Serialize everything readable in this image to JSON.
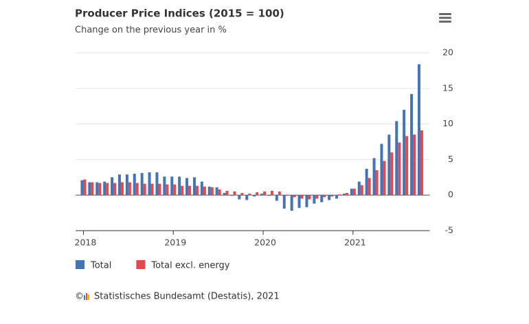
{
  "chart_data": {
    "type": "bar",
    "title": "Producer Price Indices (2015 = 100)",
    "subtitle": "Change on the previous year in %",
    "categories": [
      "2018",
      null,
      null,
      null,
      null,
      null,
      null,
      null,
      null,
      null,
      null,
      null,
      "2019",
      null,
      null,
      null,
      null,
      null,
      null,
      null,
      null,
      null,
      null,
      null,
      "2020",
      null,
      null,
      null,
      null,
      null,
      null,
      null,
      null,
      null,
      null,
      null,
      "2021",
      null,
      null,
      null,
      null,
      null,
      null,
      null,
      null,
      null
    ],
    "series": [
      {
        "name": "Total",
        "color": "#4474b5",
        "values": [
          2.1,
          1.8,
          1.8,
          1.9,
          2.5,
          2.9,
          2.9,
          3.0,
          3.1,
          3.2,
          3.2,
          2.6,
          2.6,
          2.6,
          2.4,
          2.5,
          1.9,
          1.2,
          1.1,
          0.3,
          -0.1,
          -0.6,
          -0.7,
          -0.2,
          0.2,
          -0.1,
          -0.8,
          -1.9,
          -2.2,
          -1.8,
          -1.7,
          -1.2,
          -1.0,
          -0.7,
          -0.5,
          0.2,
          0.9,
          1.9,
          3.7,
          5.2,
          7.2,
          8.5,
          10.4,
          12.0,
          14.2,
          18.4
        ]
      },
      {
        "name": "Total excl. energy",
        "color": "#e3494f",
        "values": [
          2.2,
          1.8,
          1.7,
          1.7,
          1.7,
          1.8,
          1.8,
          1.7,
          1.6,
          1.6,
          1.6,
          1.5,
          1.5,
          1.3,
          1.3,
          1.3,
          1.2,
          1.1,
          0.8,
          0.6,
          0.5,
          0.3,
          0.2,
          0.4,
          0.5,
          0.6,
          0.5,
          -0.1,
          -0.3,
          -0.5,
          -0.6,
          -0.5,
          -0.3,
          -0.2,
          0.1,
          0.3,
          0.9,
          1.4,
          2.4,
          3.5,
          4.8,
          6.0,
          7.4,
          8.3,
          8.5,
          9.1
        ]
      }
    ],
    "ylim": [
      -5,
      20
    ],
    "yticks": [
      -5,
      0,
      5,
      10,
      15,
      20
    ],
    "grid": true,
    "legend": "bottom-left",
    "source": "Statistisches Bundesamt (Destatis), 2021"
  }
}
